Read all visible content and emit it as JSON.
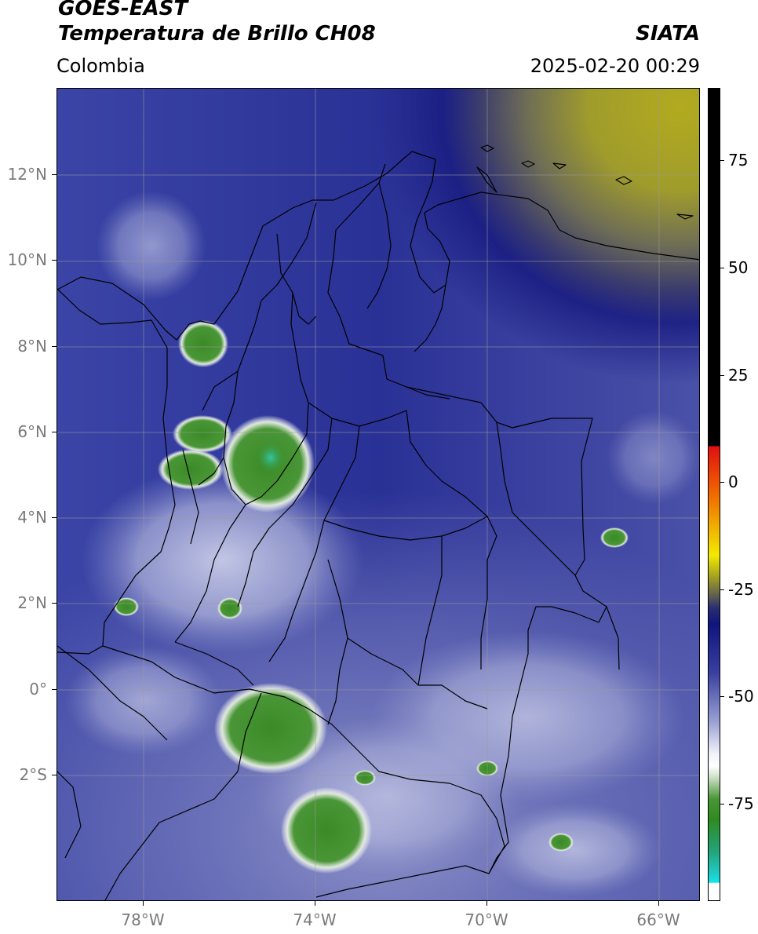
{
  "header": {
    "satellite": "GOES-EAST",
    "product": "Temperatura de Brillo CH08",
    "region": "Colombia",
    "institution": "SIATA",
    "datetime": "2025-02-20 00:29"
  },
  "axes": {
    "lat_ticks": [
      "12°N",
      "10°N",
      "8°N",
      "6°N",
      "4°N",
      "2°N",
      "0°",
      "2°S"
    ],
    "lon_ticks": [
      "78°W",
      "74°W",
      "70°W",
      "66°W"
    ]
  },
  "colorbar": {
    "tick_labels": [
      "75",
      "50",
      "25",
      "0",
      "-25",
      "-50",
      "-75"
    ]
  },
  "colors": {
    "cold_cloud": "#3e8a2a",
    "coldest": "#25c7b7",
    "moist_blue": "#1a1f86",
    "dry_yellow": "#aaa522",
    "border": "#000000"
  }
}
